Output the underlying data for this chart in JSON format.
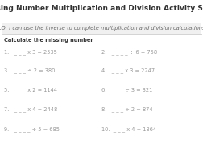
{
  "title": "Missing Number Multiplication and Division Activity Sheet",
  "lo": "LO: I can use the inverse to complete multiplication and division calculations",
  "instruction": "Calculate the missing number",
  "questions_left": [
    "1.   _ _ _ x 3 = 2535",
    "3.   _ _ _ ÷ 2 = 380",
    "5.   _ _ _ x 2 = 1144",
    "7.   _ _ _ x 4 = 2448",
    "9.   _ _ _ _ ÷ 5 = 685"
  ],
  "questions_right": [
    "2.   _ _ _ _ ÷ 6 = 758",
    "4.   _ _ _ x 3 = 2247",
    "6.   _ _ _ ÷ 3 = 321",
    "8.   _ _ _ ÷ 2 = 874",
    "10.  _ _ _ x 4 = 1864"
  ],
  "bg_color": "#ffffff",
  "title_color": "#333333",
  "lo_color": "#666666",
  "question_color": "#999999",
  "instruction_color": "#333333",
  "lo_bg_color": "#f0f0f0",
  "title_fontsize": 6.5,
  "lo_fontsize": 4.8,
  "instruction_fontsize": 4.8,
  "question_fontsize": 4.8,
  "line_color": "#cccccc"
}
